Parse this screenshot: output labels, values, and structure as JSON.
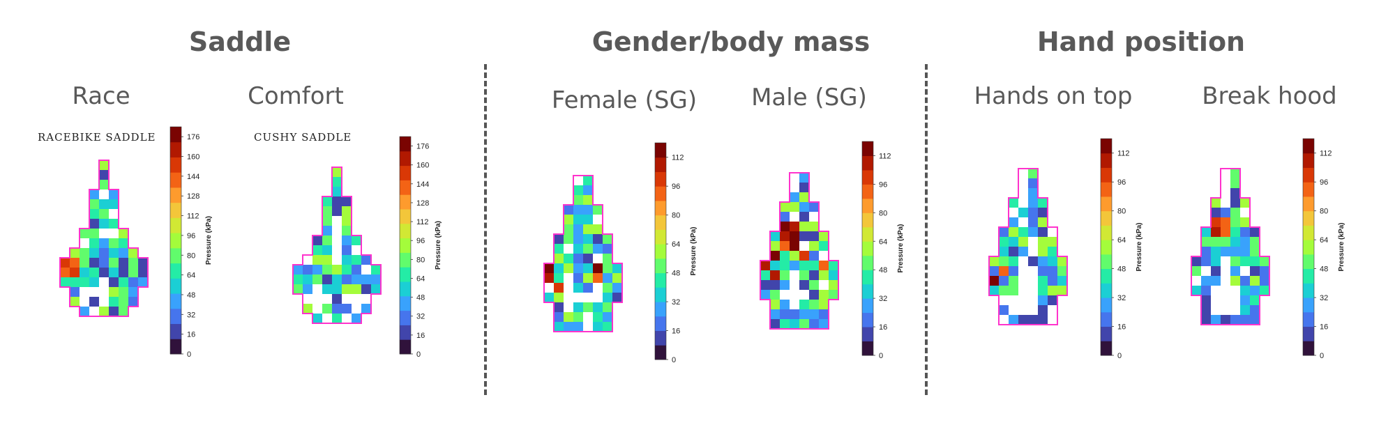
{
  "groups": {
    "saddle": "Saddle",
    "gender": "Gender/body mass",
    "hand": "Hand position"
  },
  "panels": [
    {
      "title": "Race",
      "saddle_name": "RACEBIKE SADDLE",
      "colorbar_ticks": [
        0,
        16,
        32,
        48,
        64,
        80,
        96,
        112,
        128,
        144,
        160,
        176
      ],
      "colorbar_max": 184,
      "colorbar_label": "Pressure (kPa)"
    },
    {
      "title": "Comfort",
      "saddle_name": "CUSHY SADDLE",
      "colorbar_ticks": [
        0,
        16,
        32,
        48,
        64,
        80,
        96,
        112,
        128,
        144,
        160,
        176
      ],
      "colorbar_max": 184,
      "colorbar_label": "Pressure (kPa)"
    },
    {
      "title": "Female (SG)",
      "saddle_name": "",
      "colorbar_ticks": [
        0,
        16,
        32,
        48,
        64,
        80,
        96,
        112
      ],
      "colorbar_max": 120,
      "colorbar_label": "Pressure (kPa)"
    },
    {
      "title": "Male (SG)",
      "saddle_name": "",
      "colorbar_ticks": [
        0,
        16,
        32,
        48,
        64,
        80,
        96,
        112
      ],
      "colorbar_max": 120,
      "colorbar_label": "Pressure (kPa)"
    },
    {
      "title": "Hands on top",
      "saddle_name": "",
      "colorbar_ticks": [
        0,
        16,
        32,
        48,
        64,
        80,
        96,
        112
      ],
      "colorbar_max": 120,
      "colorbar_label": "Pressure (kPa)"
    },
    {
      "title": "Break hood",
      "saddle_name": "",
      "colorbar_ticks": [
        0,
        16,
        32,
        48,
        64,
        80,
        96,
        112
      ],
      "colorbar_max": 120,
      "colorbar_label": "Pressure (kPa)"
    }
  ],
  "colors": {
    "divider": "#555555",
    "outline": "#ff33cc",
    "colormap": [
      "#30123b",
      "#4145ab",
      "#4675ed",
      "#39a2fc",
      "#1bcfd4",
      "#24eca6",
      "#61fc6c",
      "#a4fc3b",
      "#d1e834",
      "#f3c63a",
      "#fe9b2d",
      "#f36315",
      "#d93806",
      "#b11901",
      "#7a0402"
    ]
  }
}
